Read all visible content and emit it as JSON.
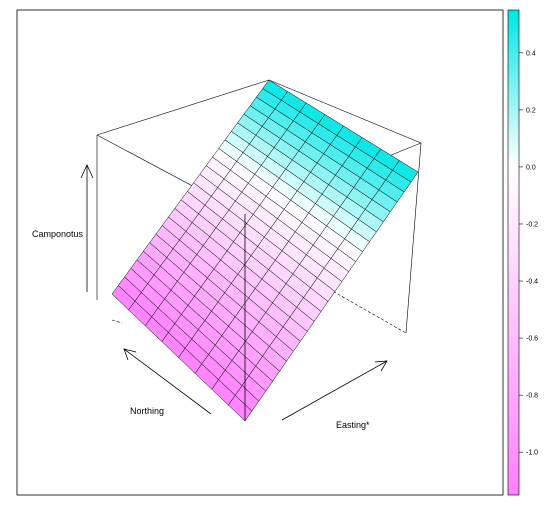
{
  "chart_data": {
    "type": "surface",
    "title": "",
    "xlabel": "Easting*",
    "ylabel": "Northing",
    "zlabel": "Camponotus",
    "surface": {
      "grid_columns": 8,
      "grid_rows": 25,
      "z_min": -1.15,
      "z_max": 0.55,
      "plane_note": "linear plane; z increases toward the back corner"
    },
    "colorbar": {
      "ticks": [
        {
          "value": 0.4,
          "label": "0.4"
        },
        {
          "value": 0.2,
          "label": "0.2"
        },
        {
          "value": 0.0,
          "label": "0.0"
        },
        {
          "value": -0.2,
          "label": "-0.2"
        },
        {
          "value": -0.4,
          "label": "-0.4"
        },
        {
          "value": -0.6,
          "label": "-0.6"
        },
        {
          "value": -0.8,
          "label": "-0.8"
        },
        {
          "value": -1.0,
          "label": "-1.0"
        }
      ],
      "range": [
        -1.15,
        0.55
      ],
      "color_low": "#ff80ff",
      "color_mid": "#ffffff",
      "color_high": "#00e5e5"
    },
    "grid": false,
    "legend": "right"
  }
}
